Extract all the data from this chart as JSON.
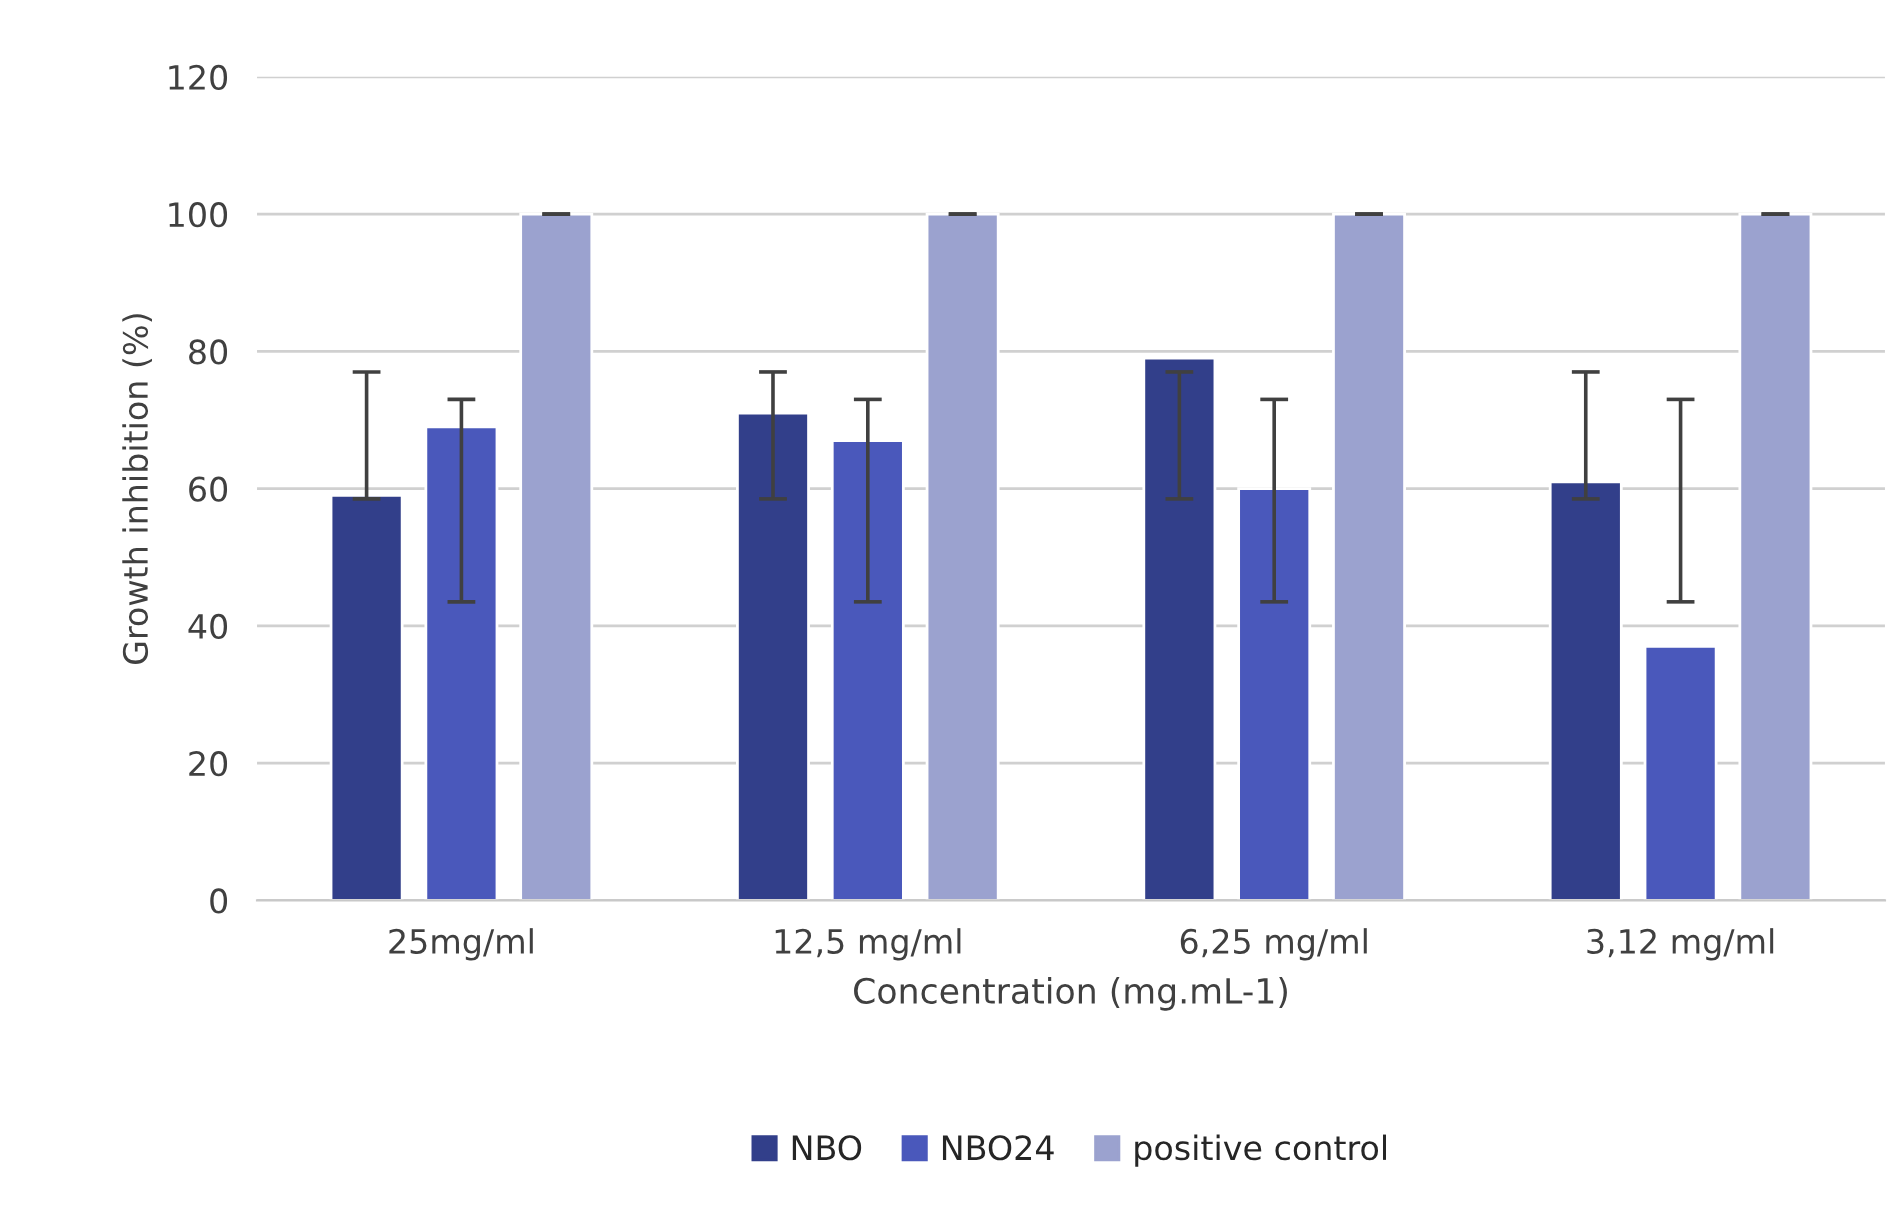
{
  "chart_data": {
    "type": "bar",
    "xlabel": "Concentration (mg.mL-1)",
    "ylabel": "Growth inhibition (%)",
    "categories": [
      "25mg/ml",
      "12,5 mg/ml",
      "6,25 mg/ml",
      "3,12 mg/ml"
    ],
    "series": [
      {
        "name": "NBO",
        "color": "#323f8a",
        "values": [
          59,
          71,
          79,
          61
        ],
        "errors": [
          [
            58.5,
            77
          ],
          [
            58.5,
            77
          ],
          [
            58.5,
            77
          ],
          [
            58.5,
            77
          ]
        ]
      },
      {
        "name": "NBO24",
        "color": "#4a58bb",
        "values": [
          69,
          67,
          60,
          37
        ],
        "errors": [
          [
            43.5,
            73
          ],
          [
            43.5,
            73
          ],
          [
            43.5,
            73
          ],
          [
            43.5,
            73
          ]
        ]
      },
      {
        "name": "positive control",
        "color": "#9ba2cf",
        "values": [
          100,
          100,
          100,
          100
        ],
        "errors": [
          [
            100,
            100
          ],
          [
            100,
            100
          ],
          [
            100,
            100
          ],
          [
            100,
            100
          ]
        ]
      }
    ],
    "ylim": [
      0,
      120
    ],
    "yticks": [
      0,
      20,
      40,
      60,
      80,
      100,
      120
    ],
    "grid": "y",
    "legend": "bottom"
  }
}
